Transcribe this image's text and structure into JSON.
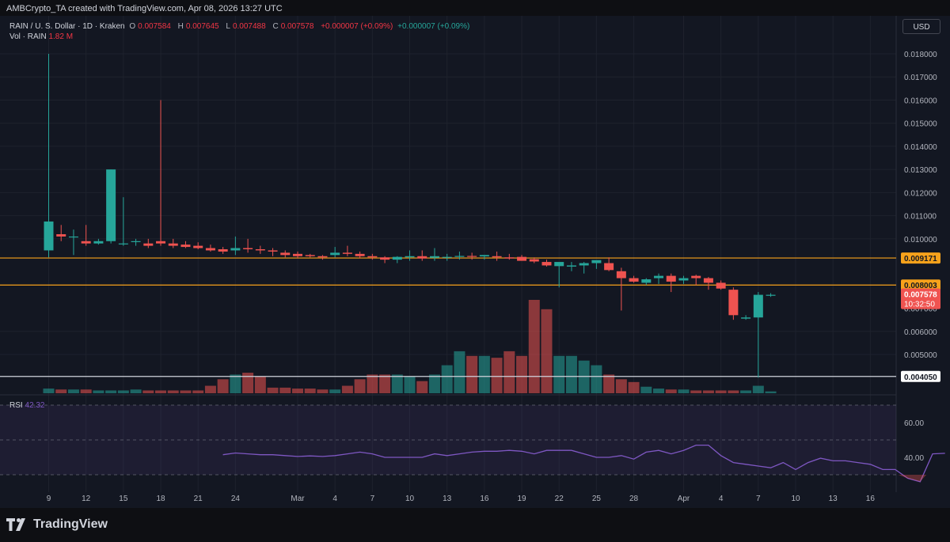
{
  "header": {
    "credit": "AMBCrypto_TA created with TradingView.com, Apr 08, 2026 13:27 UTC",
    "currency_button": "USD"
  },
  "legend": {
    "symbol": "RAIN / U. S. Dollar · 1D · Kraken",
    "o_label": "O",
    "o_value": "0.007584",
    "h_label": "H",
    "h_value": "0.007645",
    "l_label": "L",
    "l_value": "0.007488",
    "c_label": "C",
    "c_value": "0.007578",
    "change": "+0.000007 (+0.09%)",
    "change2": "+0.000007 (+0.09%)",
    "vol_label": "Vol · RAIN",
    "vol_value": "1.82 M"
  },
  "rsi": {
    "label": "RSI",
    "value": "42.32",
    "ticks": [
      "60.00",
      "40.00"
    ]
  },
  "price_tags": {
    "level1": "0.009171",
    "level2": "0.008003",
    "current": "0.007578",
    "countdown": "10:32:50",
    "support": "0.004050",
    "hidden_tick": "0.007000"
  },
  "price_axis_ticks": [
    "0.018000",
    "0.017000",
    "0.016000",
    "0.015000",
    "0.014000",
    "0.013000",
    "0.012000",
    "0.011000",
    "0.010000",
    "0.006000",
    "0.005000"
  ],
  "time_axis_ticks": [
    "9",
    "12",
    "15",
    "18",
    "21",
    "24",
    "Mar",
    "4",
    "7",
    "10",
    "13",
    "16",
    "19",
    "22",
    "25",
    "28",
    "Apr",
    "4",
    "7",
    "10",
    "13",
    "16"
  ],
  "branding": {
    "logo_text": "TradingView"
  },
  "colors": {
    "up": "#26a69a",
    "down": "#ef5350",
    "bg": "#131722",
    "grid": "#1e222d",
    "level": "#f7a21b",
    "support": "#d1d4dc",
    "rsi": "#7e57c2"
  },
  "chart_data": {
    "type": "candlestick",
    "symbol": "RAIN / U. S. Dollar",
    "interval": "1D",
    "exchange": "Kraken",
    "ylim": [
      0.0035,
      0.0192
    ],
    "x": [
      "Feb 9",
      "Feb 10",
      "Feb 11",
      "Feb 12",
      "Feb 13",
      "Feb 14",
      "Feb 15",
      "Feb 16",
      "Feb 17",
      "Feb 18",
      "Feb 19",
      "Feb 20",
      "Feb 21",
      "Feb 22",
      "Feb 23",
      "Feb 24",
      "Feb 25",
      "Feb 26",
      "Feb 27",
      "Feb 28",
      "Mar 1",
      "Mar 2",
      "Mar 3",
      "Mar 4",
      "Mar 5",
      "Mar 6",
      "Mar 7",
      "Mar 8",
      "Mar 9",
      "Mar 10",
      "Mar 11",
      "Mar 12",
      "Mar 13",
      "Mar 14",
      "Mar 15",
      "Mar 16",
      "Mar 17",
      "Mar 18",
      "Mar 19",
      "Mar 20",
      "Mar 21",
      "Mar 22",
      "Mar 23",
      "Mar 24",
      "Mar 25",
      "Mar 26",
      "Mar 27",
      "Mar 28",
      "Mar 29",
      "Mar 30",
      "Mar 31",
      "Apr 1",
      "Apr 2",
      "Apr 3",
      "Apr 4",
      "Apr 5",
      "Apr 6",
      "Apr 7",
      "Apr 8"
    ],
    "open": [
      0.0095,
      0.0102,
      0.0101,
      0.0099,
      0.0098,
      0.0099,
      0.0098,
      0.0099,
      0.0098,
      0.0099,
      0.0098,
      0.00975,
      0.0097,
      0.0096,
      0.00955,
      0.0095,
      0.0096,
      0.00955,
      0.0095,
      0.0094,
      0.00935,
      0.0093,
      0.00925,
      0.0093,
      0.0094,
      0.00935,
      0.00925,
      0.0092,
      0.0091,
      0.0092,
      0.00925,
      0.00918,
      0.0092,
      0.00923,
      0.00926,
      0.00924,
      0.00925,
      0.0092,
      0.00922,
      0.00912,
      0.009,
      0.00882,
      0.0088,
      0.00885,
      0.00895,
      0.00895,
      0.0086,
      0.0083,
      0.0081,
      0.0083,
      0.0084,
      0.0082,
      0.0084,
      0.0083,
      0.0081,
      0.0078,
      0.00655,
      0.0066,
      0.00758
    ],
    "high": [
      0.018,
      0.0106,
      0.0104,
      0.0106,
      0.01,
      0.013,
      0.0118,
      0.01,
      0.01,
      0.016,
      0.01,
      0.0099,
      0.00985,
      0.00975,
      0.00965,
      0.0101,
      0.01,
      0.0097,
      0.0096,
      0.0095,
      0.00945,
      0.00935,
      0.0093,
      0.00965,
      0.0097,
      0.00945,
      0.00935,
      0.00925,
      0.00925,
      0.0095,
      0.0095,
      0.0096,
      0.00935,
      0.00945,
      0.0094,
      0.0093,
      0.00945,
      0.00935,
      0.0093,
      0.0092,
      0.0091,
      0.0089,
      0.009,
      0.009,
      0.00905,
      0.0092,
      0.00875,
      0.0084,
      0.0083,
      0.0085,
      0.0085,
      0.0084,
      0.00845,
      0.00835,
      0.0082,
      0.0079,
      0.0067,
      0.0077,
      0.00765
    ],
    "low": [
      0.0092,
      0.0099,
      0.0093,
      0.0097,
      0.00975,
      0.0098,
      0.0097,
      0.0097,
      0.0096,
      0.0097,
      0.0096,
      0.0096,
      0.00955,
      0.00945,
      0.00935,
      0.0093,
      0.0094,
      0.00935,
      0.00925,
      0.0092,
      0.00915,
      0.0092,
      0.0091,
      0.0092,
      0.00925,
      0.00915,
      0.0091,
      0.00895,
      0.00895,
      0.00905,
      0.00905,
      0.00905,
      0.00905,
      0.0091,
      0.0091,
      0.0091,
      0.00905,
      0.0091,
      0.00905,
      0.00895,
      0.0088,
      0.0079,
      0.0086,
      0.0085,
      0.0087,
      0.0086,
      0.0069,
      0.0081,
      0.008,
      0.00805,
      0.0077,
      0.00805,
      0.008,
      0.0078,
      0.0078,
      0.0065,
      0.0065,
      0.004,
      0.00749
    ],
    "close": [
      0.01075,
      0.0101,
      0.0101,
      0.0098,
      0.0099,
      0.013,
      0.0098,
      0.0099,
      0.0097,
      0.0098,
      0.0097,
      0.00965,
      0.0096,
      0.0095,
      0.00945,
      0.0096,
      0.00955,
      0.0095,
      0.00945,
      0.0093,
      0.00925,
      0.00925,
      0.0092,
      0.0094,
      0.00935,
      0.00925,
      0.0092,
      0.0091,
      0.00922,
      0.00925,
      0.00915,
      0.00925,
      0.00922,
      0.00926,
      0.00924,
      0.0093,
      0.0092,
      0.00915,
      0.00905,
      0.00902,
      0.00885,
      0.009,
      0.00885,
      0.00895,
      0.00908,
      0.00865,
      0.0083,
      0.00815,
      0.00825,
      0.0084,
      0.00815,
      0.0083,
      0.0083,
      0.0081,
      0.00785,
      0.0067,
      0.0066,
      0.00758,
      0.00758
    ],
    "volume_relative": [
      0.05,
      0.04,
      0.04,
      0.04,
      0.03,
      0.03,
      0.03,
      0.04,
      0.03,
      0.03,
      0.03,
      0.03,
      0.03,
      0.08,
      0.15,
      0.2,
      0.22,
      0.18,
      0.06,
      0.06,
      0.05,
      0.05,
      0.04,
      0.04,
      0.08,
      0.15,
      0.2,
      0.2,
      0.2,
      0.18,
      0.13,
      0.2,
      0.3,
      0.45,
      0.4,
      0.4,
      0.38,
      0.45,
      0.4,
      1.0,
      0.9,
      0.4,
      0.4,
      0.35,
      0.3,
      0.2,
      0.15,
      0.12,
      0.07,
      0.05,
      0.04,
      0.04,
      0.03,
      0.03,
      0.03,
      0.03,
      0.03,
      0.08,
      0.02
    ],
    "rsi": [
      41.5,
      42.5,
      42,
      41.5,
      41.5,
      41,
      40.5,
      40.8,
      40.5,
      41,
      42,
      43,
      42,
      40,
      40,
      40,
      40,
      42,
      41,
      42,
      43,
      43.5,
      43.5,
      44,
      43.5,
      42,
      44,
      44,
      44,
      42,
      40,
      40,
      41,
      39,
      43,
      44,
      42,
      44,
      47,
      47,
      41,
      37,
      36,
      35,
      34,
      37,
      33,
      37,
      39.5,
      38,
      38,
      37,
      36,
      33,
      33,
      28,
      26,
      42,
      42.32
    ],
    "rsi_start": "Feb 23",
    "rsi_bands": [
      70,
      50,
      30
    ],
    "horizontal_levels": [
      0.009171,
      0.008003,
      0.00405
    ],
    "price_axis_ticks": [
      0.018,
      0.017,
      0.016,
      0.015,
      0.014,
      0.013,
      0.012,
      0.011,
      0.01,
      0.006,
      0.005
    ]
  }
}
